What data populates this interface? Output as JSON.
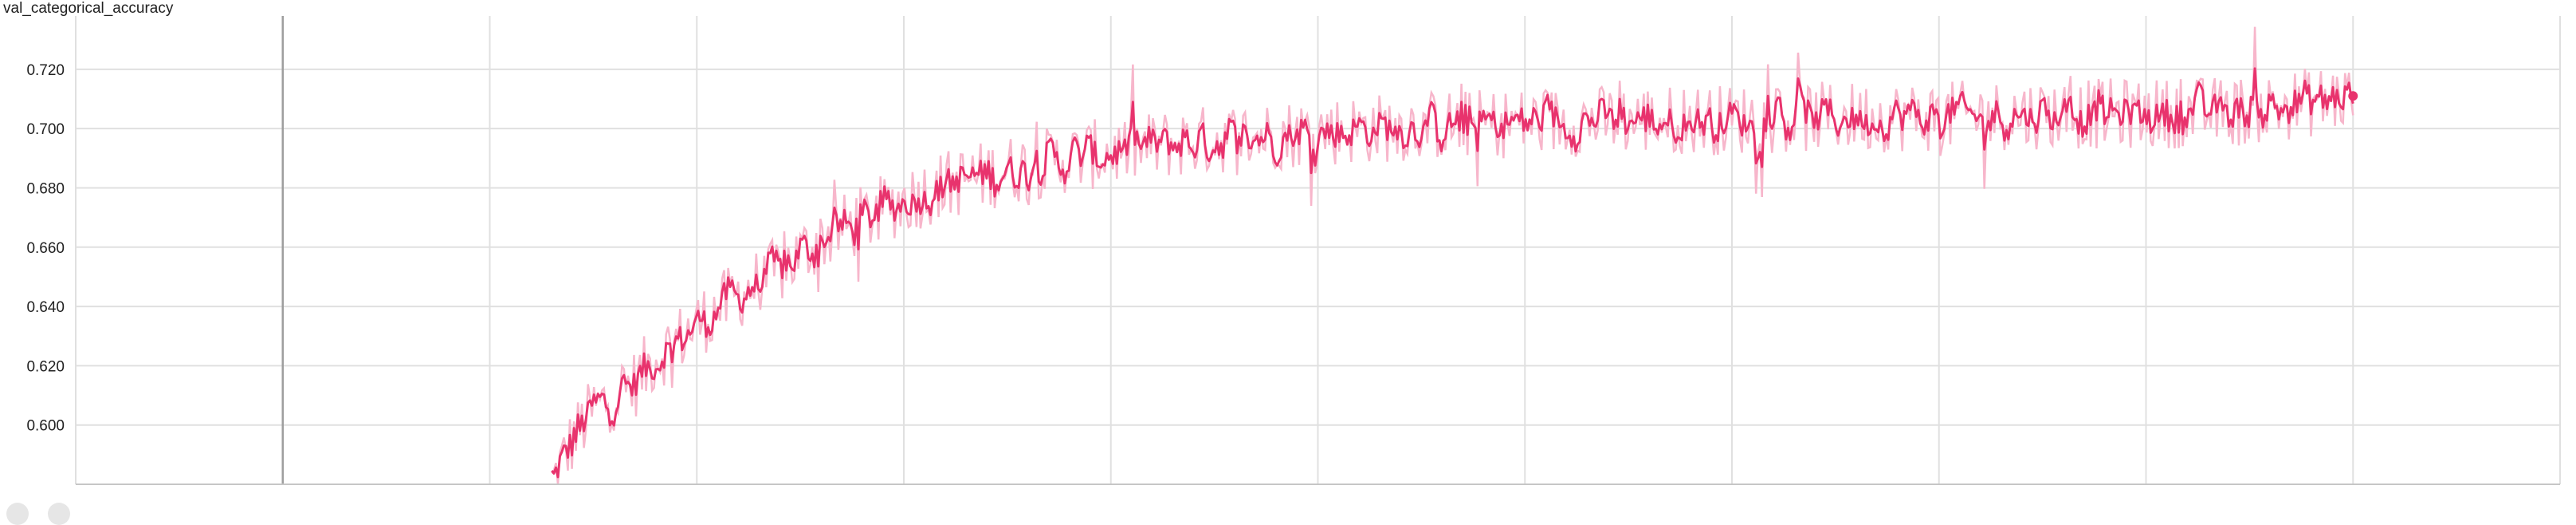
{
  "chart_data": {
    "type": "line",
    "title": "val_categorical_accuracy",
    "xlabel": "",
    "ylabel": "",
    "ylim": [
      0.58,
      0.738
    ],
    "xlim": [
      -0.1,
      1.1
    ],
    "y_ticks": [
      "0.600",
      "0.620",
      "0.640",
      "0.660",
      "0.680",
      "0.700",
      "0.720"
    ],
    "y_tick_values": [
      0.6,
      0.62,
      0.64,
      0.66,
      0.68,
      0.7,
      0.72
    ],
    "x_gridline_values": [
      -0.1,
      0.0,
      0.1,
      0.2,
      0.3,
      0.4,
      0.5,
      0.6,
      0.7,
      0.8,
      0.9,
      1.0,
      1.1
    ],
    "x_zero_line": 0.0,
    "grid": true,
    "colors": {
      "smoothed": "#e8336d",
      "raw": "#f7b6cb",
      "grid": "#e0e0e0",
      "axis": "#9e9e9e"
    },
    "series": [
      {
        "role": "smoothed",
        "x": [
          0.13,
          0.14,
          0.15,
          0.16,
          0.17,
          0.18,
          0.19,
          0.2,
          0.22,
          0.24,
          0.26,
          0.28,
          0.3,
          0.32,
          0.35,
          0.38,
          0.4,
          0.43,
          0.46,
          0.5,
          0.55,
          0.6,
          0.65,
          0.7,
          0.75,
          0.8,
          0.85,
          0.9,
          0.95,
          1.0
        ],
        "y": [
          0.58,
          0.595,
          0.605,
          0.61,
          0.614,
          0.623,
          0.628,
          0.634,
          0.644,
          0.652,
          0.663,
          0.669,
          0.676,
          0.681,
          0.686,
          0.69,
          0.692,
          0.695,
          0.697,
          0.699,
          0.701,
          0.702,
          0.703,
          0.703,
          0.704,
          0.704,
          0.705,
          0.705,
          0.706,
          0.711
        ]
      }
    ]
  }
}
